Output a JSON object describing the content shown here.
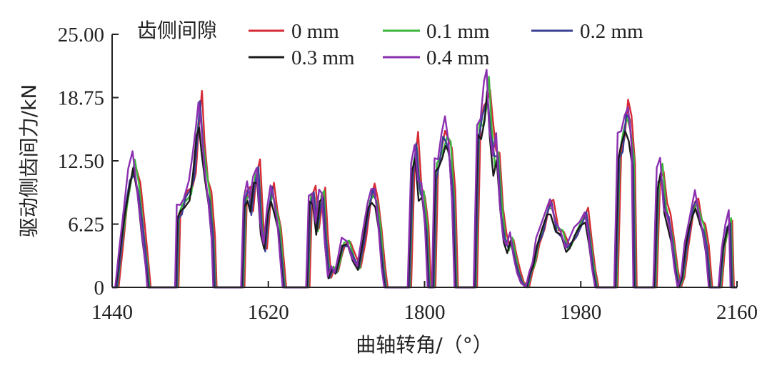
{
  "chart_data": {
    "type": "line",
    "xlabel": "曲轴转角/（°）",
    "ylabel": "驱动侧齿间力/kN",
    "xlim": [
      1440,
      2160
    ],
    "ylim": [
      0,
      25
    ],
    "x_ticks": [
      1440,
      1620,
      1800,
      1980,
      2160
    ],
    "y_ticks": [
      "0",
      "6.25",
      "12.50",
      "18.75",
      "25.00"
    ],
    "y_tick_values": [
      0,
      6.25,
      12.5,
      18.75,
      25
    ],
    "grid": false,
    "legend": {
      "title": "齿侧间隙",
      "position": "top"
    },
    "series": [
      {
        "name": "0 mm",
        "color": "#d62a35"
      },
      {
        "name": "0.1 mm",
        "color": "#3cb53c"
      },
      {
        "name": "0.2 mm",
        "color": "#3a3f93"
      },
      {
        "name": "0.3 mm",
        "color": "#1a1a1a"
      },
      {
        "name": "0.4 mm",
        "color": "#8b2fb0"
      }
    ],
    "base_curve": [
      [
        1440,
        0
      ],
      [
        1445,
        0
      ],
      [
        1450,
        4
      ],
      [
        1455,
        8
      ],
      [
        1460,
        11
      ],
      [
        1465,
        12.5
      ],
      [
        1470,
        10
      ],
      [
        1475,
        6
      ],
      [
        1480,
        2
      ],
      [
        1482,
        0
      ],
      [
        1510,
        0
      ],
      [
        1514,
        0
      ],
      [
        1516,
        7.5
      ],
      [
        1520,
        8
      ],
      [
        1524,
        9
      ],
      [
        1530,
        10
      ],
      [
        1534,
        12
      ],
      [
        1538,
        16
      ],
      [
        1541,
        18.5
      ],
      [
        1544,
        15
      ],
      [
        1548,
        11
      ],
      [
        1552,
        9
      ],
      [
        1556,
        5
      ],
      [
        1558,
        0
      ],
      [
        1590,
        0
      ],
      [
        1593,
        9
      ],
      [
        1597,
        10
      ],
      [
        1600,
        8
      ],
      [
        1604,
        11
      ],
      [
        1608,
        12
      ],
      [
        1612,
        6
      ],
      [
        1616,
        4
      ],
      [
        1620,
        8
      ],
      [
        1624,
        10
      ],
      [
        1628,
        8
      ],
      [
        1632,
        6
      ],
      [
        1636,
        2
      ],
      [
        1638,
        0
      ],
      [
        1665,
        0
      ],
      [
        1668,
        9
      ],
      [
        1672,
        9.5
      ],
      [
        1676,
        6
      ],
      [
        1680,
        9
      ],
      [
        1683,
        9.5
      ],
      [
        1686,
        5
      ],
      [
        1690,
        1
      ],
      [
        1694,
        2
      ],
      [
        1698,
        1.5
      ],
      [
        1702,
        3
      ],
      [
        1706,
        4.5
      ],
      [
        1712,
        4.5
      ],
      [
        1718,
        3
      ],
      [
        1724,
        2
      ],
      [
        1730,
        5
      ],
      [
        1736,
        8.5
      ],
      [
        1740,
        9.8
      ],
      [
        1744,
        9
      ],
      [
        1748,
        6
      ],
      [
        1752,
        2
      ],
      [
        1755,
        0
      ],
      [
        1782,
        0
      ],
      [
        1786,
        12
      ],
      [
        1790,
        14.5
      ],
      [
        1794,
        10
      ],
      [
        1798,
        9.5
      ],
      [
        1802,
        6
      ],
      [
        1805,
        0
      ],
      [
        1810,
        0
      ],
      [
        1813,
        12
      ],
      [
        1817,
        13
      ],
      [
        1821,
        15
      ],
      [
        1825,
        15.5
      ],
      [
        1829,
        14
      ],
      [
        1833,
        9
      ],
      [
        1836,
        0
      ],
      [
        1858,
        0
      ],
      [
        1862,
        16
      ],
      [
        1866,
        17
      ],
      [
        1870,
        19
      ],
      [
        1873,
        20.5
      ],
      [
        1876,
        16
      ],
      [
        1880,
        13
      ],
      [
        1884,
        14
      ],
      [
        1888,
        8
      ],
      [
        1892,
        5
      ],
      [
        1896,
        4
      ],
      [
        1900,
        5
      ],
      [
        1904,
        3
      ],
      [
        1908,
        1.5
      ],
      [
        1912,
        0.5
      ],
      [
        1918,
        0
      ],
      [
        1922,
        1.5
      ],
      [
        1926,
        2.5
      ],
      [
        1930,
        4.5
      ],
      [
        1936,
        6
      ],
      [
        1942,
        8
      ],
      [
        1946,
        8.5
      ],
      [
        1952,
        6
      ],
      [
        1958,
        5.5
      ],
      [
        1964,
        4
      ],
      [
        1968,
        4.5
      ],
      [
        1974,
        5.5
      ],
      [
        1980,
        6.5
      ],
      [
        1986,
        7.5
      ],
      [
        1990,
        5
      ],
      [
        1994,
        2
      ],
      [
        1998,
        0
      ],
      [
        2020,
        0
      ],
      [
        2024,
        14
      ],
      [
        2028,
        15
      ],
      [
        2032,
        17.5
      ],
      [
        2036,
        17
      ],
      [
        2040,
        13
      ],
      [
        2042,
        0
      ],
      [
        2065,
        0
      ],
      [
        2069,
        11
      ],
      [
        2073,
        12
      ],
      [
        2077,
        8
      ],
      [
        2081,
        7
      ],
      [
        2085,
        5
      ],
      [
        2089,
        2
      ],
      [
        2093,
        0
      ],
      [
        2097,
        1
      ],
      [
        2101,
        4
      ],
      [
        2105,
        6
      ],
      [
        2109,
        8
      ],
      [
        2113,
        9
      ],
      [
        2117,
        7
      ],
      [
        2121,
        6
      ],
      [
        2125,
        4
      ],
      [
        2129,
        0
      ],
      [
        2140,
        0
      ],
      [
        2144,
        4
      ],
      [
        2148,
        6
      ],
      [
        2152,
        7
      ],
      [
        2154,
        0
      ],
      [
        2160,
        0
      ]
    ]
  }
}
